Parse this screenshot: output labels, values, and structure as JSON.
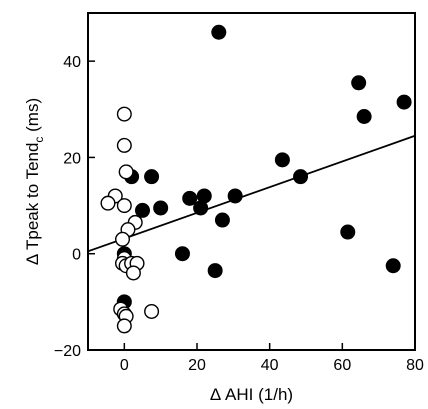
{
  "chart_data": {
    "type": "scatter",
    "title": "",
    "xlabel": "Δ AHI (1/h)",
    "ylabel_main": "Δ Tpeak to Tend",
    "ylabel_sub": "c",
    "ylabel_unit": " (ms)",
    "xlim": [
      -10,
      80
    ],
    "ylim": [
      -20,
      50
    ],
    "xticks": [
      0,
      20,
      40,
      60,
      80
    ],
    "yticks": [
      -20,
      0,
      20,
      40
    ],
    "grid": false,
    "series": [
      {
        "marker": "filled-circle",
        "color": "#000000",
        "points": [
          [
            0,
            -10
          ],
          [
            0,
            0
          ],
          [
            2,
            16
          ],
          [
            5,
            9
          ],
          [
            7.5,
            16
          ],
          [
            10,
            9.5
          ],
          [
            16,
            0
          ],
          [
            18,
            11.5
          ],
          [
            21,
            9.5
          ],
          [
            22,
            12
          ],
          [
            25,
            -3.5
          ],
          [
            26,
            46
          ],
          [
            27,
            7
          ],
          [
            30.5,
            12
          ],
          [
            43.5,
            19.5
          ],
          [
            48.5,
            16
          ],
          [
            61.5,
            4.5
          ],
          [
            64.5,
            35.5
          ],
          [
            66,
            28.5
          ],
          [
            74,
            -2.5
          ],
          [
            77,
            31.5
          ]
        ]
      },
      {
        "marker": "open-circle",
        "color": "#000000",
        "points": [
          [
            0,
            29
          ],
          [
            0,
            22.5
          ],
          [
            0.5,
            17
          ],
          [
            -2.5,
            12
          ],
          [
            -4.5,
            10.5
          ],
          [
            0,
            10
          ],
          [
            3,
            6.5
          ],
          [
            1,
            5
          ],
          [
            -0.5,
            3
          ],
          [
            0,
            -1
          ],
          [
            -0.5,
            -2
          ],
          [
            0.5,
            -2.5
          ],
          [
            2,
            -2
          ],
          [
            3.5,
            -2
          ],
          [
            2.5,
            -4
          ],
          [
            -1,
            -11.5
          ],
          [
            0,
            -12.5
          ],
          [
            0.5,
            -13
          ],
          [
            0,
            -15
          ],
          [
            7.5,
            -12
          ]
        ]
      }
    ],
    "regression_line": {
      "x": [
        -10,
        80
      ],
      "y": [
        0.5,
        24.5
      ]
    }
  }
}
